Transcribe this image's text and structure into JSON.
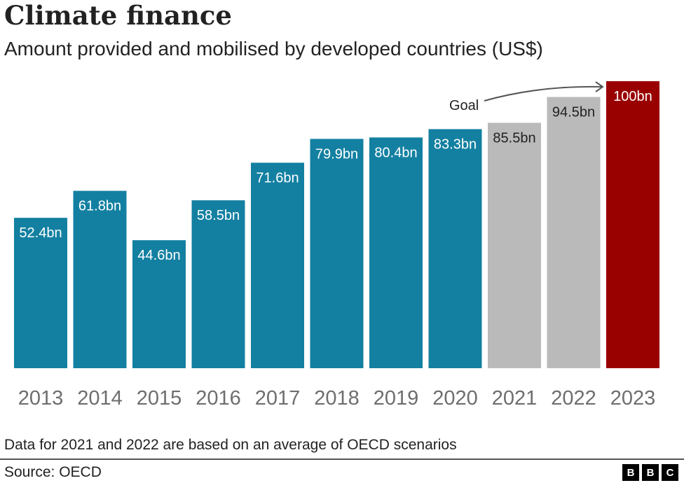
{
  "chart_data": {
    "type": "bar",
    "title": "Climate finance",
    "subtitle": "Amount provided and mobilised by developed countries (US$)",
    "categories": [
      "2013",
      "2014",
      "2015",
      "2016",
      "2017",
      "2018",
      "2019",
      "2020",
      "2021",
      "2022",
      "2023"
    ],
    "values": [
      52.4,
      61.8,
      44.6,
      58.5,
      71.6,
      79.9,
      80.4,
      83.3,
      85.5,
      94.5,
      100
    ],
    "data_labels": [
      "52.4bn",
      "61.8bn",
      "44.6bn",
      "58.5bn",
      "71.6bn",
      "79.9bn",
      "80.4bn",
      "83.3bn",
      "85.5bn",
      "94.5bn",
      "100bn"
    ],
    "bar_kind": [
      "actual",
      "actual",
      "actual",
      "actual",
      "actual",
      "actual",
      "actual",
      "actual",
      "estimate",
      "estimate",
      "goal"
    ],
    "colors": {
      "actual": "#1380A1",
      "estimate": "#BABABA",
      "goal": "#990000"
    },
    "ylim": [
      0,
      100
    ],
    "grid": false,
    "annotation": "Goal",
    "note": "Data for 2021 and 2022 are based on an average of OECD scenarios",
    "source": "Source: OECD"
  },
  "logo": [
    "B",
    "B",
    "C"
  ]
}
